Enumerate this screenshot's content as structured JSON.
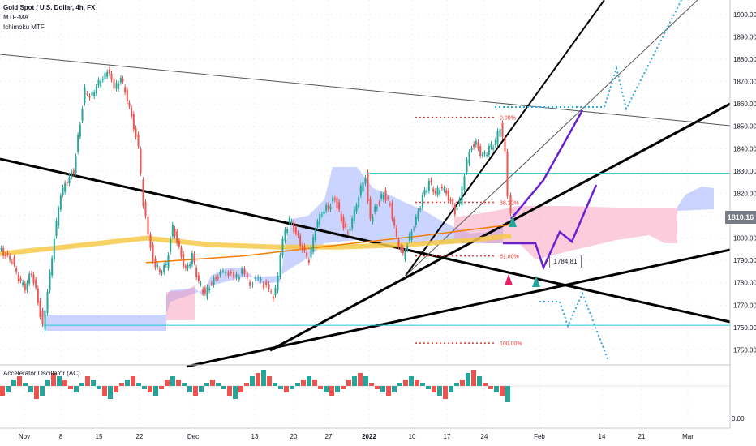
{
  "legend": {
    "title": "Gold Spot / U.S. Dollar, 4h, FX",
    "indicator_1": "MTF-MA",
    "indicator_2": "Ichimoku MTF"
  },
  "oscillator": {
    "label": "Accelerator Oscillator (AC)",
    "zero_label": "0.00"
  },
  "current_price": "1810.16",
  "callout_price": "1784.81",
  "fib_levels": [
    "0.00%",
    "38.20%",
    "61.80%",
    "100.00%"
  ],
  "chart_data": {
    "type": "candlestick",
    "title": "Gold Spot / U.S. Dollar, 4h, FX",
    "xlabel": "",
    "ylabel": "",
    "ylim": [
      1744,
      1905
    ],
    "y_ticks": [
      1750,
      1760,
      1770,
      1780,
      1790,
      1800,
      1810,
      1820,
      1830,
      1840,
      1850,
      1860,
      1870,
      1880,
      1890,
      1900
    ],
    "x_ticks": [
      "Nov",
      "8",
      "15",
      "22",
      "Dec",
      "13",
      "20",
      "27",
      "2022",
      "10",
      "17",
      "24",
      "Feb",
      "14",
      "21",
      "Mar"
    ],
    "grid": true,
    "price_path": [
      [
        0,
        1795
      ],
      [
        8,
        1792
      ],
      [
        16,
        1790
      ],
      [
        24,
        1782
      ],
      [
        32,
        1778
      ],
      [
        40,
        1785
      ],
      [
        48,
        1772
      ],
      [
        54,
        1760
      ],
      [
        60,
        1775
      ],
      [
        68,
        1800
      ],
      [
        76,
        1820
      ],
      [
        84,
        1826
      ],
      [
        92,
        1830
      ],
      [
        100,
        1852
      ],
      [
        106,
        1866
      ],
      [
        112,
        1862
      ],
      [
        120,
        1868
      ],
      [
        128,
        1872
      ],
      [
        136,
        1875
      ],
      [
        142,
        1866
      ],
      [
        150,
        1872
      ],
      [
        158,
        1862
      ],
      [
        166,
        1850
      ],
      [
        172,
        1840
      ],
      [
        178,
        1815
      ],
      [
        184,
        1803
      ],
      [
        190,
        1790
      ],
      [
        198,
        1785
      ],
      [
        206,
        1788
      ],
      [
        214,
        1805
      ],
      [
        222,
        1795
      ],
      [
        230,
        1785
      ],
      [
        238,
        1792
      ],
      [
        246,
        1780
      ],
      [
        254,
        1775
      ],
      [
        262,
        1780
      ],
      [
        270,
        1783
      ],
      [
        280,
        1786
      ],
      [
        290,
        1782
      ],
      [
        300,
        1785
      ],
      [
        310,
        1780
      ],
      [
        320,
        1782
      ],
      [
        330,
        1778
      ],
      [
        338,
        1774
      ],
      [
        344,
        1782
      ],
      [
        350,
        1800
      ],
      [
        358,
        1808
      ],
      [
        366,
        1802
      ],
      [
        374,
        1795
      ],
      [
        382,
        1790
      ],
      [
        390,
        1805
      ],
      [
        398,
        1812
      ],
      [
        406,
        1814
      ],
      [
        414,
        1818
      ],
      [
        422,
        1808
      ],
      [
        430,
        1802
      ],
      [
        438,
        1812
      ],
      [
        446,
        1822
      ],
      [
        452,
        1828
      ],
      [
        458,
        1808
      ],
      [
        466,
        1815
      ],
      [
        474,
        1820
      ],
      [
        482,
        1815
      ],
      [
        490,
        1800
      ],
      [
        498,
        1792
      ],
      [
        506,
        1800
      ],
      [
        514,
        1808
      ],
      [
        522,
        1818
      ],
      [
        530,
        1825
      ],
      [
        538,
        1820
      ],
      [
        546,
        1823
      ],
      [
        554,
        1818
      ],
      [
        562,
        1812
      ],
      [
        568,
        1816
      ],
      [
        574,
        1828
      ],
      [
        580,
        1840
      ],
      [
        588,
        1842
      ],
      [
        596,
        1836
      ],
      [
        604,
        1840
      ],
      [
        612,
        1843
      ],
      [
        618,
        1850
      ],
      [
        624,
        1840
      ],
      [
        628,
        1820
      ],
      [
        630,
        1810
      ]
    ],
    "series": [
      {
        "name": "MTF-MA",
        "color": "#f7c948",
        "values": [
          [
            0,
            1793
          ],
          [
            80,
            1796
          ],
          [
            180,
            1800
          ],
          [
            260,
            1797
          ],
          [
            340,
            1796
          ],
          [
            420,
            1796
          ],
          [
            500,
            1797
          ],
          [
            580,
            1799
          ],
          [
            630,
            1801
          ]
        ]
      },
      {
        "name": "MA",
        "color": "#f57c00",
        "values": [
          [
            180,
            1789
          ],
          [
            300,
            1792
          ],
          [
            420,
            1797
          ],
          [
            520,
            1801
          ],
          [
            630,
            1806
          ]
        ]
      }
    ],
    "horizontal_levels": [
      {
        "value": 1829,
        "color": "#26c6da"
      },
      {
        "value": 1761,
        "color": "#26c6da"
      }
    ],
    "fibonacci": [
      {
        "level": "0.00%",
        "value": 1854
      },
      {
        "level": "38.20%",
        "value": 1816
      },
      {
        "level": "61.80%",
        "value": 1792
      },
      {
        "level": "100.00%",
        "value": 1753
      }
    ],
    "oscillator_values": [
      -3,
      -2,
      2,
      3,
      1,
      -2,
      -4,
      -3,
      2,
      4,
      3,
      2,
      -1,
      -2,
      1,
      3,
      2,
      -1,
      -3,
      -4,
      -2,
      1,
      2,
      3,
      1,
      -1,
      -2,
      -3,
      -1,
      2,
      3,
      2,
      1,
      -2,
      -3,
      -2,
      1,
      2,
      1,
      -1,
      -3,
      -4,
      -2,
      1,
      3,
      4,
      5,
      3,
      1,
      -1,
      -2,
      -1,
      1,
      2,
      3,
      2,
      -1,
      -2,
      -3,
      -2,
      -1,
      2,
      3,
      4,
      3,
      1,
      -1,
      -2,
      -3,
      -2,
      1,
      2,
      3,
      2,
      1,
      -1,
      -2,
      -3,
      -4,
      -2,
      1,
      2,
      4,
      5,
      3,
      1,
      -1,
      -2,
      -3,
      -5
    ]
  }
}
